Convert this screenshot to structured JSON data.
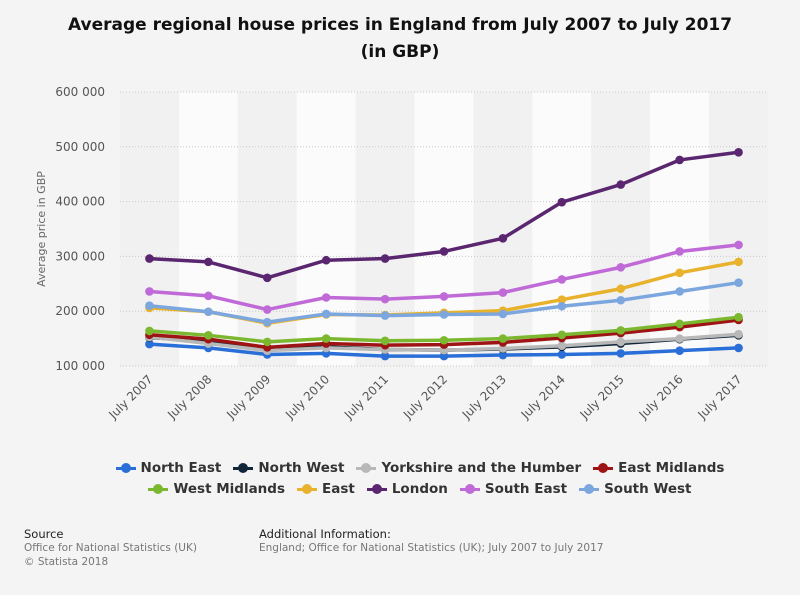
{
  "chart_data": {
    "type": "line",
    "title": "Average regional house prices in England from July 2007 to July 2017 (in GBP)",
    "title_lines": [
      "Average regional house prices in England from July 2007 to July 2017",
      "(in GBP)"
    ],
    "ylabel": "Average price in GBP",
    "ylim": [
      100000,
      600000
    ],
    "yticks": [
      100000,
      200000,
      300000,
      400000,
      500000,
      600000
    ],
    "ytick_labels": [
      "100 000",
      "200 000",
      "300 000",
      "400 000",
      "500 000",
      "600 000"
    ],
    "categories": [
      "July 2007",
      "July 2008",
      "July 2009",
      "July 2010",
      "July 2011",
      "July 2012",
      "July 2013",
      "July 2014",
      "July 2015",
      "July 2016",
      "July 2017"
    ],
    "grid": true,
    "legend_position": "bottom",
    "series": [
      {
        "name": "North East",
        "color": "#2a6ed8",
        "values": [
          140000,
          133000,
          121000,
          123000,
          118000,
          118000,
          120000,
          121000,
          123000,
          128000,
          133000
        ]
      },
      {
        "name": "North West",
        "color": "#12263a",
        "values": [
          152000,
          145000,
          130000,
          135000,
          130000,
          129000,
          131000,
          135000,
          141000,
          149000,
          156000
        ]
      },
      {
        "name": "Yorkshire and the Humber",
        "color": "#b8b8b8",
        "values": [
          153000,
          141000,
          128000,
          133000,
          130000,
          129000,
          132000,
          137000,
          144000,
          150000,
          158000
        ]
      },
      {
        "name": "East Midlands",
        "color": "#9e1414",
        "values": [
          157000,
          149000,
          134000,
          141000,
          138000,
          139000,
          143000,
          151000,
          160000,
          171000,
          184000
        ]
      },
      {
        "name": "West Midlands",
        "color": "#7cb82f",
        "values": [
          164000,
          156000,
          144000,
          150000,
          146000,
          147000,
          150000,
          157000,
          165000,
          177000,
          189000
        ]
      },
      {
        "name": "East",
        "color": "#e8b22d",
        "values": [
          206000,
          199000,
          178000,
          194000,
          193000,
          197000,
          201000,
          221000,
          241000,
          270000,
          290000
        ]
      },
      {
        "name": "London",
        "color": "#5a2670",
        "values": [
          296000,
          290000,
          261000,
          293000,
          296000,
          309000,
          333000,
          399000,
          431000,
          476000,
          490000
        ]
      },
      {
        "name": "South East",
        "color": "#c06ad8",
        "values": [
          236000,
          228000,
          203000,
          225000,
          222000,
          227000,
          234000,
          258000,
          280000,
          309000,
          321000
        ]
      },
      {
        "name": "South West",
        "color": "#7ba7de",
        "values": [
          210000,
          199000,
          180000,
          195000,
          192000,
          194000,
          195000,
          209000,
          220000,
          236000,
          252000
        ]
      }
    ]
  },
  "legend": {
    "rows": [
      [
        0,
        1,
        2,
        3
      ],
      [
        4,
        5,
        6,
        7,
        8
      ]
    ]
  },
  "footer": {
    "source_heading": "Source",
    "source_lines": [
      "Office for National Statistics (UK)",
      "© Statista 2018"
    ],
    "info_heading": "Additional Information:",
    "info_text": "England; Office for National Statistics (UK); July 2007 to July 2017"
  }
}
